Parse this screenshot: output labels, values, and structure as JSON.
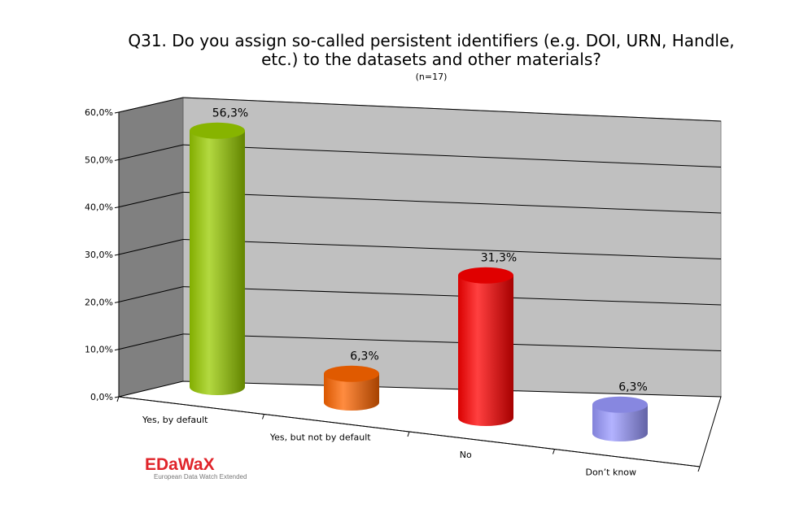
{
  "chart_data": {
    "type": "bar",
    "title_line1": "Q31. Do you assign so-called persistent identifiers (e.g. DOI, URN, Handle,",
    "title_line2": "etc.) to the datasets and other materials?",
    "subtitle": "(n=17)",
    "categories": [
      "Yes, by default",
      "Yes, but not by default",
      "No",
      "Don’t know"
    ],
    "values": [
      56.3,
      6.3,
      31.3,
      6.3
    ],
    "data_labels": [
      "56,3%",
      "6,3%",
      "31,3%",
      "6,3%"
    ],
    "y_ticks": [
      "0,0%",
      "10,0%",
      "20,0%",
      "30,0%",
      "40,0%",
      "50,0%",
      "60,0%"
    ],
    "ylim": [
      0,
      60
    ],
    "grid": true,
    "style": "3d-cylinder",
    "colors": [
      "#99cc00",
      "#ff6600",
      "#ff0000",
      "#9999ff"
    ]
  },
  "logo": {
    "name": "EDaWaX",
    "tagline": "European Data Watch Extended"
  }
}
